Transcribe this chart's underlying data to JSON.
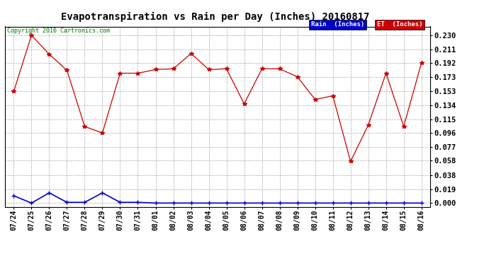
{
  "title": "Evapotranspiration vs Rain per Day (Inches) 20160817",
  "copyright": "Copyright 2016 Cartronics.com",
  "x_labels": [
    "07/24",
    "07/25",
    "07/26",
    "07/27",
    "07/28",
    "07/29",
    "07/30",
    "07/31",
    "08/01",
    "08/02",
    "08/03",
    "08/04",
    "08/05",
    "08/06",
    "08/07",
    "08/08",
    "08/09",
    "08/10",
    "08/11",
    "08/12",
    "08/13",
    "08/14",
    "08/15",
    "08/16"
  ],
  "et_values": [
    0.153,
    0.23,
    0.204,
    0.182,
    0.105,
    0.096,
    0.178,
    0.178,
    0.183,
    0.184,
    0.205,
    0.183,
    0.184,
    0.136,
    0.184,
    0.184,
    0.173,
    0.142,
    0.147,
    0.057,
    0.107,
    0.178,
    0.105,
    0.192
  ],
  "rain_values": [
    0.01,
    0.0,
    0.014,
    0.001,
    0.001,
    0.014,
    0.001,
    0.001,
    0.0,
    0.0,
    0.0,
    0.0,
    0.0,
    0.0,
    0.0,
    0.0,
    0.0,
    0.0,
    0.0,
    0.0,
    0.0,
    0.0,
    0.0,
    0.0
  ],
  "et_color": "#cc0000",
  "rain_color": "#0000cc",
  "bg_color": "#ffffff",
  "plot_bg_color": "#ffffff",
  "grid_color": "#aaaaaa",
  "y_ticks": [
    0.0,
    0.019,
    0.038,
    0.058,
    0.077,
    0.096,
    0.115,
    0.134,
    0.153,
    0.173,
    0.192,
    0.211,
    0.23
  ],
  "ylim": [
    -0.005,
    0.242
  ],
  "legend_rain_label": "Rain  (Inches)",
  "legend_et_label": "ET  (Inches)",
  "legend_rain_bg": "#0000cc",
  "legend_et_bg": "#cc0000",
  "title_fontsize": 10,
  "tick_fontsize": 7,
  "copyright_color": "#007700",
  "copyright_fontsize": 6
}
